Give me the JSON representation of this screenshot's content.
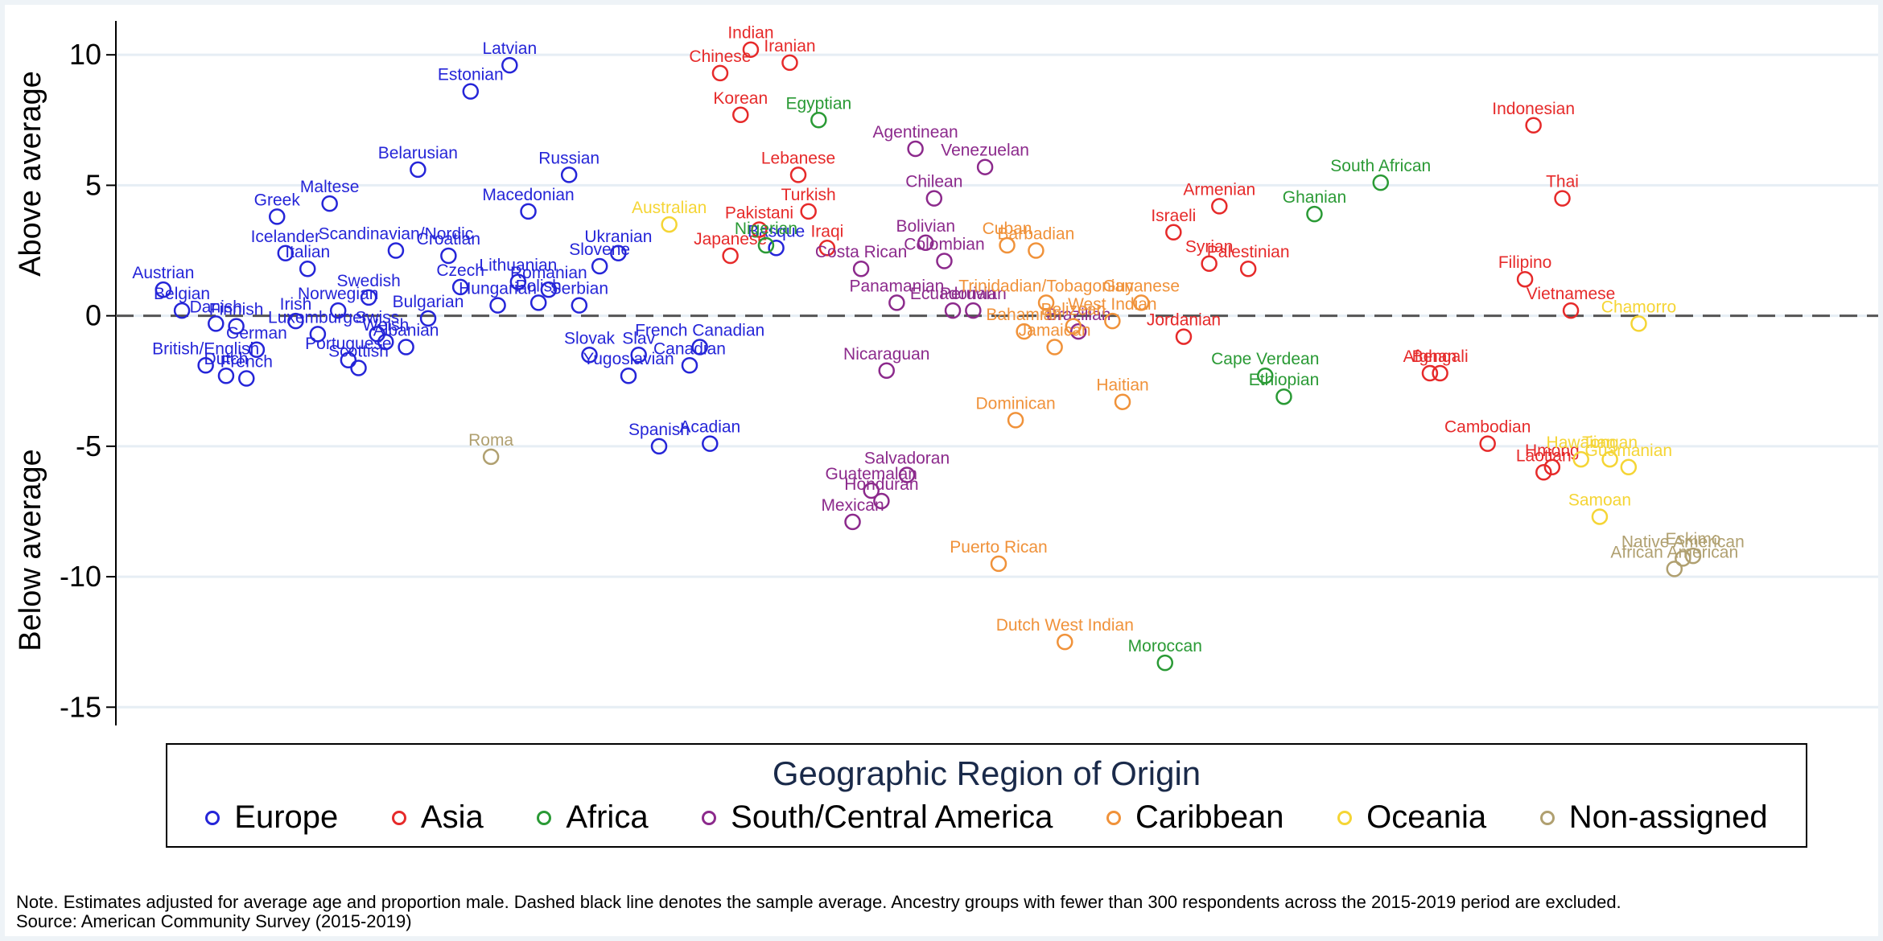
{
  "chart_data": {
    "type": "scatter",
    "y_ticks": [
      "10",
      "5",
      "0",
      "-5",
      "-10",
      "-15"
    ],
    "y_tick_values": [
      10,
      5,
      0,
      -5,
      -10,
      -15
    ],
    "ylim": [
      -15.7,
      11.3
    ],
    "xlim": [
      0,
      100
    ],
    "ylabel_upper": "Above average",
    "ylabel_lower": "Below average",
    "reference_line": {
      "y": 0,
      "style": "dashed"
    },
    "grid": "horizontal",
    "legend": {
      "title": "Geographic Region of Origin",
      "placement": "bottom",
      "entries": [
        {
          "key": "Europe",
          "label": "Europe"
        },
        {
          "key": "Asia",
          "label": "Asia"
        },
        {
          "key": "Africa",
          "label": "Africa"
        },
        {
          "key": "SCAmerica",
          "label": "South/Central America"
        },
        {
          "key": "Caribbean",
          "label": "Caribbean"
        },
        {
          "key": "Oceania",
          "label": "Oceania"
        },
        {
          "key": "Nonassigned",
          "label": "Non-assigned"
        }
      ]
    },
    "colors": {
      "Europe": "#2525d8",
      "Asia": "#e62a2a",
      "Africa": "#2a9a35",
      "SCAmerica": "#8c2a8c",
      "Caribbean": "#f0923a",
      "Oceania": "#f5d535",
      "Nonassigned": "#b0a070"
    },
    "points": [
      {
        "label": "Austrian",
        "region": "Europe",
        "x": 0.8,
        "y": 1.0
      },
      {
        "label": "Belgian",
        "region": "Europe",
        "x": 1.9,
        "y": 0.2
      },
      {
        "label": "British/English",
        "region": "Europe",
        "x": 3.3,
        "y": -1.9
      },
      {
        "label": "Danish",
        "region": "Europe",
        "x": 3.9,
        "y": -0.3
      },
      {
        "label": "Dutch",
        "region": "Europe",
        "x": 4.5,
        "y": -2.3
      },
      {
        "label": "Finnish",
        "region": "Europe",
        "x": 5.1,
        "y": -0.4
      },
      {
        "label": "French",
        "region": "Europe",
        "x": 5.7,
        "y": -2.4
      },
      {
        "label": "German",
        "region": "Europe",
        "x": 6.3,
        "y": -1.3
      },
      {
        "label": "Greek",
        "region": "Europe",
        "x": 7.5,
        "y": 3.8
      },
      {
        "label": "Icelander",
        "region": "Europe",
        "x": 8.0,
        "y": 2.4
      },
      {
        "label": "Irish",
        "region": "Europe",
        "x": 8.6,
        "y": -0.2
      },
      {
        "label": "Italian",
        "region": "Europe",
        "x": 9.3,
        "y": 1.8
      },
      {
        "label": "Luxemburger",
        "region": "Europe",
        "x": 9.9,
        "y": -0.7
      },
      {
        "label": "Maltese",
        "region": "Europe",
        "x": 10.6,
        "y": 4.3
      },
      {
        "label": "Norwegian",
        "region": "Europe",
        "x": 11.1,
        "y": 0.2
      },
      {
        "label": "Portuguese",
        "region": "Europe",
        "x": 11.7,
        "y": -1.7
      },
      {
        "label": "Scottish",
        "region": "Europe",
        "x": 12.3,
        "y": -2.0
      },
      {
        "label": "Swedish",
        "region": "Europe",
        "x": 12.9,
        "y": 0.7
      },
      {
        "label": "Swiss",
        "region": "Europe",
        "x": 13.4,
        "y": -0.7
      },
      {
        "label": "Welsh",
        "region": "Europe",
        "x": 13.9,
        "y": -1.0
      },
      {
        "label": "Scandinavian/Nordic",
        "region": "Europe",
        "x": 14.5,
        "y": 2.5
      },
      {
        "label": "Albanian",
        "region": "Europe",
        "x": 15.1,
        "y": -1.2
      },
      {
        "label": "Belarusian",
        "region": "Europe",
        "x": 15.8,
        "y": 5.6
      },
      {
        "label": "Bulgarian",
        "region": "Europe",
        "x": 16.4,
        "y": -0.1
      },
      {
        "label": "Croatian",
        "region": "Europe",
        "x": 17.6,
        "y": 2.3
      },
      {
        "label": "Czech",
        "region": "Europe",
        "x": 18.3,
        "y": 1.1
      },
      {
        "label": "Estonian",
        "region": "Europe",
        "x": 18.9,
        "y": 8.6
      },
      {
        "label": "Hungarian",
        "region": "Europe",
        "x": 20.5,
        "y": 0.4
      },
      {
        "label": "Latvian",
        "region": "Europe",
        "x": 21.2,
        "y": 9.6
      },
      {
        "label": "Lithuanian",
        "region": "Europe",
        "x": 21.7,
        "y": 1.3
      },
      {
        "label": "Macedonian",
        "region": "Europe",
        "x": 22.3,
        "y": 4.0
      },
      {
        "label": "Polish",
        "region": "Europe",
        "x": 22.9,
        "y": 0.5
      },
      {
        "label": "Romanian",
        "region": "Europe",
        "x": 23.5,
        "y": 1.0
      },
      {
        "label": "Russian",
        "region": "Europe",
        "x": 24.7,
        "y": 5.4
      },
      {
        "label": "Serbian",
        "region": "Europe",
        "x": 25.3,
        "y": 0.4
      },
      {
        "label": "Slovak",
        "region": "Europe",
        "x": 25.9,
        "y": -1.5
      },
      {
        "label": "Slovene",
        "region": "Europe",
        "x": 26.5,
        "y": 1.9
      },
      {
        "label": "Ukranian",
        "region": "Europe",
        "x": 27.6,
        "y": 2.4
      },
      {
        "label": "Yugoslavian",
        "region": "Europe",
        "x": 28.2,
        "y": -2.3
      },
      {
        "label": "Slav",
        "region": "Europe",
        "x": 28.8,
        "y": -1.5
      },
      {
        "label": "Spanish",
        "region": "Europe",
        "x": 30.0,
        "y": -5.0
      },
      {
        "label": "Canadian",
        "region": "Europe",
        "x": 31.8,
        "y": -1.9
      },
      {
        "label": "French Canadian",
        "region": "Europe",
        "x": 32.4,
        "y": -1.2
      },
      {
        "label": "Acadian",
        "region": "Europe",
        "x": 33.0,
        "y": -4.9
      },
      {
        "label": "Basque",
        "region": "Europe",
        "x": 36.9,
        "y": 2.6
      },
      {
        "label": "Roma",
        "region": "Nonassigned",
        "x": 20.1,
        "y": -5.4
      },
      {
        "label": "Australian",
        "region": "Oceania",
        "x": 30.6,
        "y": 3.5
      },
      {
        "label": "Japanese",
        "region": "Asia",
        "x": 34.2,
        "y": 2.3
      },
      {
        "label": "Chinese",
        "region": "Asia",
        "x": 33.6,
        "y": 9.3
      },
      {
        "label": "Korean",
        "region": "Asia",
        "x": 34.8,
        "y": 7.7
      },
      {
        "label": "Indian",
        "region": "Asia",
        "x": 35.4,
        "y": 10.2
      },
      {
        "label": "Pakistani",
        "region": "Asia",
        "x": 35.9,
        "y": 3.3
      },
      {
        "label": "Iranian",
        "region": "Asia",
        "x": 37.7,
        "y": 9.7
      },
      {
        "label": "Lebanese",
        "region": "Asia",
        "x": 38.2,
        "y": 5.4
      },
      {
        "label": "Turkish",
        "region": "Asia",
        "x": 38.8,
        "y": 4.0
      },
      {
        "label": "Iraqi",
        "region": "Asia",
        "x": 39.9,
        "y": 2.6
      },
      {
        "label": "Nigerian",
        "region": "Africa",
        "x": 36.3,
        "y": 2.7
      },
      {
        "label": "Egyptian",
        "region": "Africa",
        "x": 39.4,
        "y": 7.5
      },
      {
        "label": "Costa Rican",
        "region": "SCAmerica",
        "x": 41.9,
        "y": 1.8
      },
      {
        "label": "Panamanian",
        "region": "SCAmerica",
        "x": 44.0,
        "y": 0.5
      },
      {
        "label": "Nicaraguan",
        "region": "SCAmerica",
        "x": 43.4,
        "y": -2.1
      },
      {
        "label": "Mexican",
        "region": "SCAmerica",
        "x": 41.4,
        "y": -7.9
      },
      {
        "label": "Guatemalan",
        "region": "SCAmerica",
        "x": 42.5,
        "y": -6.7
      },
      {
        "label": "Honduran",
        "region": "SCAmerica",
        "x": 43.1,
        "y": -7.1
      },
      {
        "label": "Salvadoran",
        "region": "SCAmerica",
        "x": 44.6,
        "y": -6.1
      },
      {
        "label": "Agentinean",
        "region": "SCAmerica",
        "x": 45.1,
        "y": 6.4
      },
      {
        "label": "Bolivian",
        "region": "SCAmerica",
        "x": 45.7,
        "y": 2.8
      },
      {
        "label": "Chilean",
        "region": "SCAmerica",
        "x": 46.2,
        "y": 4.5
      },
      {
        "label": "Colombian",
        "region": "SCAmerica",
        "x": 46.8,
        "y": 2.1
      },
      {
        "label": "Ecuadorian",
        "region": "SCAmerica",
        "x": 47.3,
        "y": 0.2
      },
      {
        "label": "Peruvian",
        "region": "SCAmerica",
        "x": 48.5,
        "y": 0.2
      },
      {
        "label": "Venezuelan",
        "region": "SCAmerica",
        "x": 49.2,
        "y": 5.7
      },
      {
        "label": "Brazilian",
        "region": "SCAmerica",
        "x": 54.7,
        "y": -0.6
      },
      {
        "label": "Puerto Rican",
        "region": "Caribbean",
        "x": 50.0,
        "y": -9.5
      },
      {
        "label": "Cuban",
        "region": "Caribbean",
        "x": 50.5,
        "y": 2.7
      },
      {
        "label": "Dominican",
        "region": "Caribbean",
        "x": 51.0,
        "y": -4.0
      },
      {
        "label": "Bahamian",
        "region": "Caribbean",
        "x": 51.5,
        "y": -0.6
      },
      {
        "label": "Barbadian",
        "region": "Caribbean",
        "x": 52.2,
        "y": 2.5
      },
      {
        "label": "Trinidadian/Tobagonian",
        "region": "Caribbean",
        "x": 52.8,
        "y": 0.5
      },
      {
        "label": "Jamaican",
        "region": "Caribbean",
        "x": 53.3,
        "y": -1.2
      },
      {
        "label": "Dutch West Indian",
        "region": "Caribbean",
        "x": 53.9,
        "y": -12.5
      },
      {
        "label": "Belizean",
        "region": "Caribbean",
        "x": 54.4,
        "y": -0.4
      },
      {
        "label": "West Indian",
        "region": "Caribbean",
        "x": 56.7,
        "y": -0.2
      },
      {
        "label": "Haitian",
        "region": "Caribbean",
        "x": 57.3,
        "y": -3.3
      },
      {
        "label": "Guyanese",
        "region": "Caribbean",
        "x": 58.4,
        "y": 0.5
      },
      {
        "label": "Israeli",
        "region": "Asia",
        "x": 60.3,
        "y": 3.2
      },
      {
        "label": "Jordanian",
        "region": "Asia",
        "x": 60.9,
        "y": -0.8
      },
      {
        "label": "Syrian",
        "region": "Asia",
        "x": 62.4,
        "y": 2.0
      },
      {
        "label": "Armenian",
        "region": "Asia",
        "x": 63.0,
        "y": 4.2
      },
      {
        "label": "Palestinian",
        "region": "Asia",
        "x": 64.7,
        "y": 1.8
      },
      {
        "label": "Moroccan",
        "region": "Africa",
        "x": 59.8,
        "y": -13.3
      },
      {
        "label": "Cape Verdean",
        "region": "Africa",
        "x": 65.7,
        "y": -2.3
      },
      {
        "label": "Ethiopian",
        "region": "Africa",
        "x": 66.8,
        "y": -3.1
      },
      {
        "label": "Ghanian",
        "region": "Africa",
        "x": 68.6,
        "y": 3.9
      },
      {
        "label": "South African",
        "region": "Africa",
        "x": 72.5,
        "y": 5.1
      },
      {
        "label": "Afghan",
        "region": "Asia",
        "x": 75.4,
        "y": -2.2
      },
      {
        "label": "Bengali",
        "region": "Asia",
        "x": 76.0,
        "y": -2.2
      },
      {
        "label": "Cambodian",
        "region": "Asia",
        "x": 78.8,
        "y": -4.9
      },
      {
        "label": "Filipino",
        "region": "Asia",
        "x": 81.0,
        "y": 1.4
      },
      {
        "label": "Indonesian",
        "region": "Asia",
        "x": 81.5,
        "y": 7.3
      },
      {
        "label": "Laotian",
        "region": "Asia",
        "x": 82.1,
        "y": -6.0
      },
      {
        "label": "Hmong",
        "region": "Asia",
        "x": 82.6,
        "y": -5.8
      },
      {
        "label": "Thai",
        "region": "Asia",
        "x": 83.2,
        "y": 4.5
      },
      {
        "label": "Vietnamese",
        "region": "Asia",
        "x": 83.7,
        "y": 0.2
      },
      {
        "label": "Hawaiian",
        "region": "Oceania",
        "x": 84.3,
        "y": -5.5
      },
      {
        "label": "Samoan",
        "region": "Oceania",
        "x": 85.4,
        "y": -7.7
      },
      {
        "label": "Tongan",
        "region": "Oceania",
        "x": 86.0,
        "y": -5.5
      },
      {
        "label": "Guamanian",
        "region": "Oceania",
        "x": 87.1,
        "y": -5.8
      },
      {
        "label": "Chamorro",
        "region": "Oceania",
        "x": 87.7,
        "y": -0.3
      },
      {
        "label": "African American",
        "region": "Nonassigned",
        "x": 89.8,
        "y": -9.7
      },
      {
        "label": "Native American",
        "region": "Nonassigned",
        "x": 90.3,
        "y": -9.3
      },
      {
        "label": "Eskimo",
        "region": "Nonassigned",
        "x": 90.9,
        "y": -9.2
      }
    ]
  },
  "note": {
    "line1": "Note. Estimates adjusted for average age and proportion male. Dashed black line denotes the sample average. Ancestry groups with fewer than 300 respondents across the 2015-2019 period are excluded.",
    "line2": "Source: American Community Survey (2015-2019)"
  }
}
